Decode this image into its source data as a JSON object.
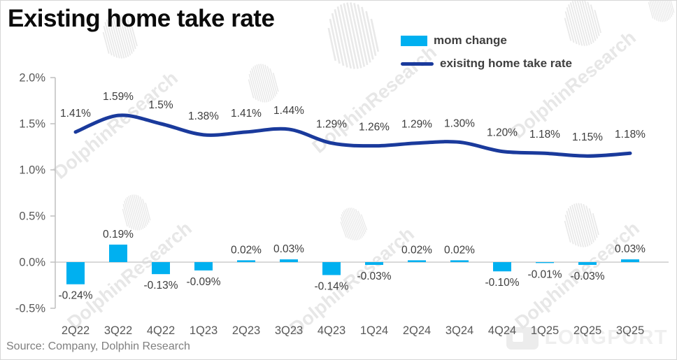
{
  "title": "Existing home take rate",
  "source": "Source: Company, Dolphin Research",
  "watermark_text": "DolphinResearch",
  "brand_watermark": "LONGPORT",
  "colors": {
    "bar": "#00B0F0",
    "line": "#1A3A9C",
    "data_label": "#3d3d3d",
    "axis": "#BFBFBF",
    "zero_line": "#D9D9D9",
    "tick_text": "#595959",
    "watermark": "#e7e7e7"
  },
  "chart_data": {
    "type": "bar",
    "subtype": "bar+line combo",
    "categories": [
      "2Q22",
      "3Q22",
      "4Q22",
      "1Q23",
      "2Q23",
      "3Q23",
      "4Q23",
      "1Q24",
      "2Q24",
      "3Q24",
      "4Q24",
      "1Q25",
      "2Q25",
      "3Q25"
    ],
    "series": [
      {
        "name": "mom change",
        "type": "bar",
        "color": "#00B0F0",
        "values": [
          -0.24,
          0.19,
          -0.13,
          -0.09,
          0.02,
          0.03,
          -0.14,
          -0.03,
          0.02,
          0.02,
          -0.1,
          -0.01,
          -0.03,
          0.03
        ],
        "labels": [
          "-0.24%",
          "0.19%",
          "-0.13%",
          "-0.09%",
          "0.02%",
          "0.03%",
          "-0.14%",
          "-0.03%",
          "0.02%",
          "0.02%",
          "-0.10%",
          "-0.01%",
          "-0.03%",
          "0.03%"
        ]
      },
      {
        "name": "exisitng home take rate",
        "type": "line",
        "color": "#1A3A9C",
        "values": [
          1.41,
          1.59,
          1.5,
          1.38,
          1.41,
          1.44,
          1.29,
          1.26,
          1.29,
          1.3,
          1.2,
          1.18,
          1.15,
          1.18
        ],
        "labels": [
          "1.41%",
          "1.59%",
          "1.5%",
          "1.38%",
          "1.41%",
          "1.44%",
          "1.29%",
          "1.26%",
          "1.29%",
          "1.30%",
          "1.20%",
          "1.18%",
          "1.15%",
          "1.18%"
        ]
      }
    ],
    "ylim": [
      -0.5,
      2.0
    ],
    "ytick_values": [
      2.0,
      1.5,
      1.0,
      0.5,
      0.0,
      -0.5
    ],
    "ytick_labels": [
      "2.0%",
      "1.5%",
      "1.0%",
      "0.5%",
      "0.0%",
      "-0.5%"
    ],
    "grid": false,
    "legend_position": "top"
  }
}
